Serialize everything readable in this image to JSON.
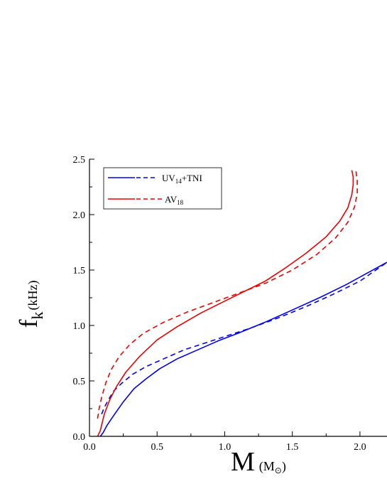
{
  "chart_data": {
    "type": "line",
    "xlabel": {
      "main": "M",
      "unit_open": "(M",
      "unit_symbol": "⊙",
      "unit_close": ")"
    },
    "ylabel": {
      "main": "f",
      "sub": "k",
      "unit": "(kHz)"
    },
    "xlim": [
      0.0,
      2.2
    ],
    "ylim": [
      0.0,
      2.5
    ],
    "x_ticks": [
      "0.0",
      "0.5",
      "1.0",
      "1.5",
      "2.0"
    ],
    "y_ticks": [
      "0.0",
      "0.5",
      "1.0",
      "1.5",
      "2.0",
      "2.5"
    ],
    "legend": {
      "placement": "top-left",
      "entries": [
        {
          "text": "UV",
          "sub": "14",
          "suffix": "+TNI",
          "color": "#0000ee"
        },
        {
          "text": "AV",
          "sub": "18",
          "suffix": "",
          "color": "#ee0000"
        }
      ]
    },
    "series": [
      {
        "style": "solid",
        "color": "#0000ee",
        "x": [
          0.08,
          0.1,
          0.13,
          0.18,
          0.25,
          0.33,
          0.42,
          0.52,
          0.65,
          0.8,
          0.95,
          1.1,
          1.3,
          1.5,
          1.7,
          1.9,
          2.05,
          2.2
        ],
        "y": [
          0.0,
          0.03,
          0.1,
          0.19,
          0.31,
          0.43,
          0.52,
          0.61,
          0.7,
          0.78,
          0.86,
          0.93,
          1.03,
          1.14,
          1.25,
          1.37,
          1.47,
          1.57
        ]
      },
      {
        "style": "dashed",
        "color": "#0000ee",
        "x": [
          0.09,
          0.11,
          0.14,
          0.18,
          0.24,
          0.32,
          0.42,
          0.55,
          0.7,
          0.85,
          1.0,
          1.2,
          1.4,
          1.6,
          1.8,
          2.0,
          2.2
        ],
        "y": [
          0.2,
          0.26,
          0.33,
          0.41,
          0.48,
          0.56,
          0.63,
          0.7,
          0.78,
          0.84,
          0.9,
          0.98,
          1.07,
          1.17,
          1.28,
          1.4,
          1.57
        ]
      },
      {
        "style": "solid",
        "color": "#ee0000",
        "x": [
          0.06,
          0.08,
          0.11,
          0.15,
          0.2,
          0.27,
          0.37,
          0.5,
          0.65,
          0.82,
          1.0,
          1.15,
          1.3,
          1.45,
          1.6,
          1.75,
          1.85,
          1.91,
          1.94,
          1.95,
          1.95,
          1.94
        ],
        "y": [
          0.0,
          0.05,
          0.2,
          0.33,
          0.45,
          0.58,
          0.72,
          0.87,
          0.99,
          1.11,
          1.22,
          1.31,
          1.4,
          1.52,
          1.65,
          1.8,
          1.94,
          2.06,
          2.18,
          2.27,
          2.34,
          2.4
        ]
      },
      {
        "style": "dashed",
        "color": "#ee0000",
        "x": [
          0.06,
          0.07,
          0.09,
          0.12,
          0.16,
          0.22,
          0.3,
          0.4,
          0.55,
          0.72,
          0.9,
          1.1,
          1.3,
          1.5,
          1.68,
          1.82,
          1.91,
          1.96,
          1.98,
          1.98,
          1.97
        ],
        "y": [
          0.16,
          0.24,
          0.35,
          0.48,
          0.6,
          0.72,
          0.83,
          0.93,
          1.03,
          1.12,
          1.2,
          1.29,
          1.38,
          1.5,
          1.64,
          1.79,
          1.93,
          2.07,
          2.19,
          2.3,
          2.4
        ]
      }
    ]
  }
}
